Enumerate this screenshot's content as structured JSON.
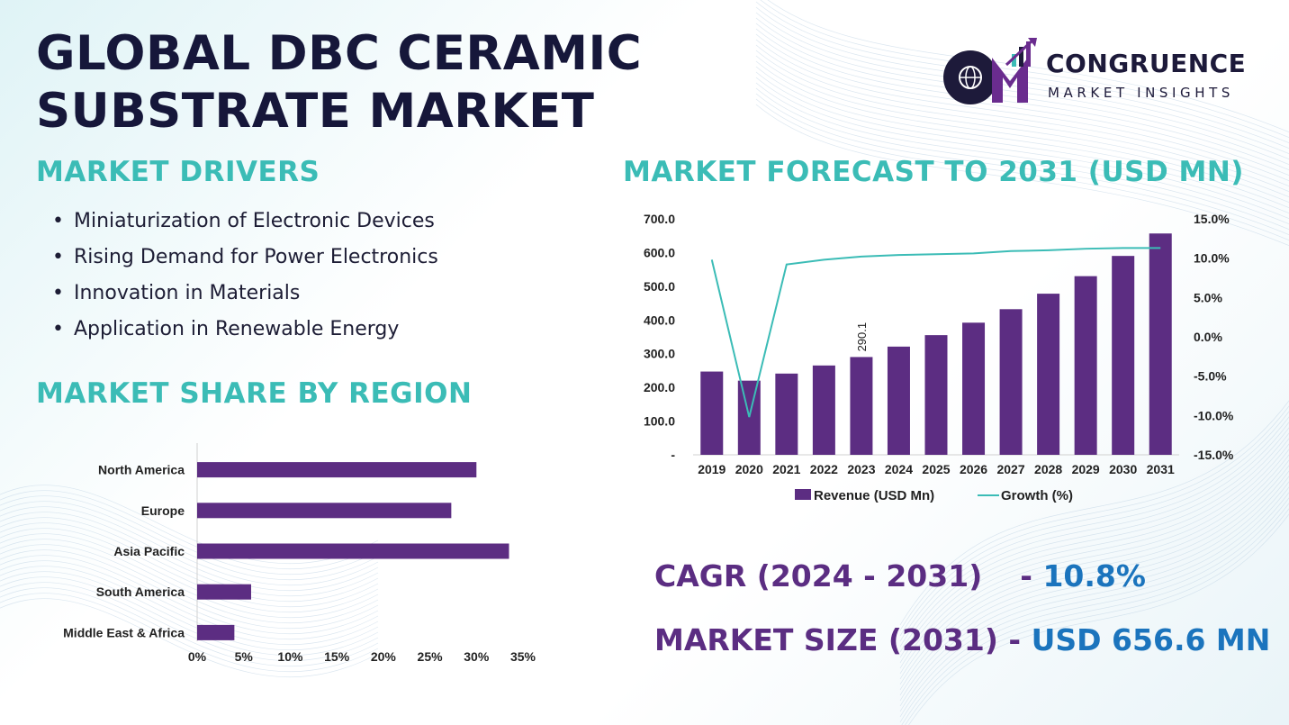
{
  "title_line1": "GLOBAL DBC CERAMIC",
  "title_line2": "SUBSTRATE MARKET",
  "logo": {
    "name": "CONGRUENCE",
    "sub": "MARKET INSIGHTS",
    "colors": {
      "purple": "#6a2c8e",
      "navy": "#1d1a3a",
      "teal": "#3bbcb6"
    }
  },
  "drivers": {
    "heading": "MARKET DRIVERS",
    "items": [
      "Miniaturization of Electronic Devices",
      "Rising Demand for Power Electronics",
      "Innovation in Materials",
      "Application in Renewable Energy"
    ]
  },
  "region_heading": "MARKET SHARE BY REGION",
  "forecast_heading": "MARKET FORECAST TO 2031 (USD MN)",
  "stats": {
    "cagr_label": "CAGR (2024 - 2031)",
    "cagr_sep": "- ",
    "cagr_value": "10.8%",
    "size_label": "MARKET SIZE (2031)",
    "size_sep": " - ",
    "size_value": "USD 656.6 MN"
  },
  "colors": {
    "accent": "#3bbcb6",
    "bar": "#5c2d82",
    "line": "#3bbcb6",
    "title": "#16173a",
    "value": "#1b74bd"
  },
  "chart_data": [
    {
      "type": "bar",
      "orientation": "horizontal",
      "categories": [
        "North America",
        "Europe",
        "Asia Pacific",
        "South America",
        "Middle East & Africa"
      ],
      "values": [
        30,
        27.3,
        33.5,
        5.8,
        4
      ],
      "xlim": [
        0,
        35
      ],
      "xticks": [
        "0%",
        "5%",
        "10%",
        "15%",
        "20%",
        "25%",
        "30%",
        "35%"
      ],
      "grid": false
    },
    {
      "type": "bar",
      "categories": [
        "2019",
        "2020",
        "2021",
        "2022",
        "2023",
        "2024",
        "2025",
        "2026",
        "2027",
        "2028",
        "2029",
        "2030",
        "2031"
      ],
      "series": [
        {
          "name": "Revenue (USD Mn)",
          "type": "bar",
          "axis": "left",
          "values": [
            247,
            220,
            241,
            265,
            290.1,
            321,
            355,
            392,
            432,
            478,
            530,
            590,
            656.6
          ]
        },
        {
          "name": "Growth (%)",
          "type": "line",
          "axis": "right",
          "values": [
            9.8,
            -10.2,
            9.2,
            9.8,
            10.2,
            10.4,
            10.5,
            10.6,
            10.9,
            11.0,
            11.2,
            11.3,
            11.3
          ]
        }
      ],
      "ylim_left": [
        0,
        700
      ],
      "yticks_left": [
        "-",
        "100.0",
        "200.0",
        "300.0",
        "400.0",
        "500.0",
        "600.0",
        "700.0"
      ],
      "ylim_right": [
        -15,
        15
      ],
      "yticks_right": [
        "-15.0%",
        "-10.0%",
        "-5.0%",
        "0.0%",
        "5.0%",
        "10.0%",
        "15.0%"
      ],
      "data_labels": [
        {
          "category": "2023",
          "text": "290.1"
        }
      ],
      "legend": "bottom",
      "grid": false
    }
  ]
}
